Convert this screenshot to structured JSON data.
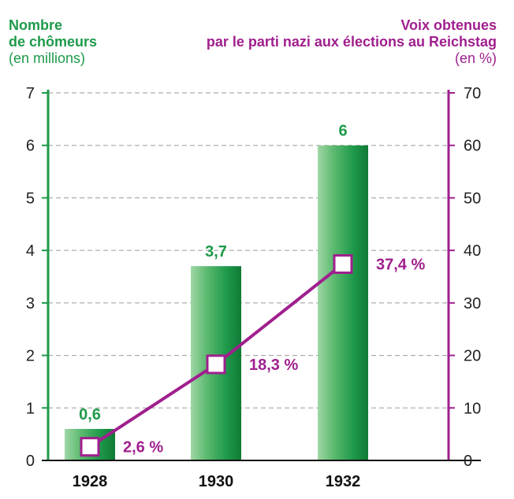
{
  "left_title": {
    "line1": "Nombre",
    "line2": "de chômeurs",
    "line3": "(en millions)"
  },
  "right_title": {
    "line1": "Voix obtenues",
    "line2": "par le parti nazi aux élections au Reichstag",
    "line3": "(en %)"
  },
  "chart_data": {
    "type": "bar",
    "categories": [
      "1928",
      "1930",
      "1932"
    ],
    "series": [
      {
        "values": [
          0.6,
          3.7,
          6
        ],
        "labels": [
          "0,6",
          "3,7",
          "6"
        ],
        "axis": "left",
        "mark": "bar"
      },
      {
        "values": [
          2.6,
          18.3,
          37.4
        ],
        "labels": [
          "2,6 %",
          "18,3 %",
          "37,4 %"
        ],
        "axis": "right",
        "mark": "line"
      }
    ],
    "y_left": {
      "range": [
        0,
        7
      ],
      "ticks": [
        "0",
        "1",
        "2",
        "3",
        "4",
        "5",
        "6",
        "7"
      ]
    },
    "y_right": {
      "range": [
        0,
        70
      ],
      "ticks": [
        "0",
        "10",
        "20",
        "30",
        "40",
        "50",
        "60",
        "70"
      ]
    },
    "grid": true,
    "colors": {
      "bar": "#1e9a4a",
      "line": "#a01f8e",
      "grid": "#9a9a9a",
      "axis_left": "#1e9a4a",
      "axis_right": "#a01f8e"
    }
  }
}
